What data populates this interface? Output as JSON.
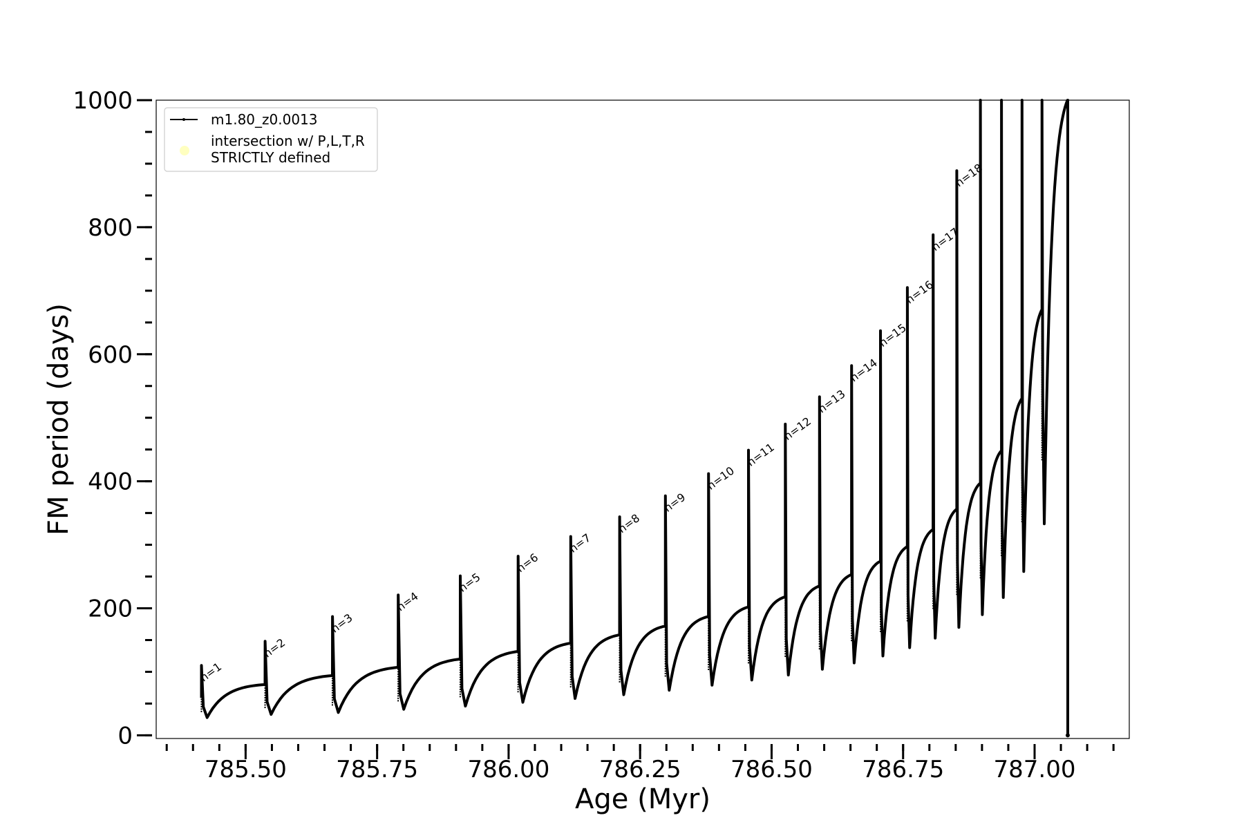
{
  "chart_data": {
    "type": "line",
    "xlabel": "Age (Myr)",
    "ylabel": "FM period (days)",
    "xlim": [
      785.33,
      787.18
    ],
    "ylim": [
      -5,
      1000
    ],
    "x_ticks": [
      785.5,
      785.75,
      786.0,
      786.25,
      786.5,
      786.75,
      787.0
    ],
    "x_tick_labels": [
      "785.50",
      "785.75",
      "786.00",
      "786.25",
      "786.50",
      "786.75",
      "787.00"
    ],
    "y_ticks": [
      0,
      200,
      400,
      600,
      800,
      1000
    ],
    "y_tick_labels": [
      "0",
      "200",
      "400",
      "600",
      "800",
      "1000"
    ],
    "x_minor_step": 0.05,
    "y_minor_step": 50,
    "grid": false,
    "legend": {
      "placement": "top-left",
      "entries": [
        {
          "label": "m1.80_z0.0013",
          "style": "line-with-dots",
          "color": "#000000"
        },
        {
          "label_lines": [
            "intersection w/ P,L,T,R",
            "STRICTLY defined"
          ],
          "style": "marker",
          "color": "#ffffc0"
        }
      ]
    },
    "series": [
      {
        "name": "m1.80_z0.0013",
        "color": "#000000",
        "pulses": [
          {
            "n": "n=1",
            "age": 785.416,
            "peak": 110,
            "min": 28,
            "plateau": 80
          },
          {
            "n": "n=2",
            "age": 785.537,
            "peak": 148,
            "min": 33,
            "plateau": 94
          },
          {
            "n": "n=3",
            "age": 785.665,
            "peak": 187,
            "min": 36,
            "plateau": 107
          },
          {
            "n": "n=4",
            "age": 785.79,
            "peak": 221,
            "min": 41,
            "plateau": 120
          },
          {
            "n": "n=5",
            "age": 785.908,
            "peak": 251,
            "min": 46,
            "plateau": 132
          },
          {
            "n": "n=6",
            "age": 786.018,
            "peak": 282,
            "min": 52,
            "plateau": 145
          },
          {
            "n": "n=7",
            "age": 786.118,
            "peak": 313,
            "min": 58,
            "plateau": 158
          },
          {
            "n": "n=8",
            "age": 786.211,
            "peak": 344,
            "min": 64,
            "plateau": 172
          },
          {
            "n": "n=9",
            "age": 786.298,
            "peak": 377,
            "min": 71,
            "plateau": 187
          },
          {
            "n": "n=10",
            "age": 786.38,
            "peak": 412,
            "min": 79,
            "plateau": 202
          },
          {
            "n": "n=11",
            "age": 786.456,
            "peak": 449,
            "min": 87,
            "plateau": 218
          },
          {
            "n": "n=12",
            "age": 786.526,
            "peak": 490,
            "min": 95,
            "plateau": 235
          },
          {
            "n": "n=13",
            "age": 786.591,
            "peak": 533,
            "min": 104,
            "plateau": 253
          },
          {
            "n": "n=14",
            "age": 786.652,
            "peak": 582,
            "min": 114,
            "plateau": 274
          },
          {
            "n": "n=15",
            "age": 786.707,
            "peak": 637,
            "min": 125,
            "plateau": 297
          },
          {
            "n": "n=16",
            "age": 786.758,
            "peak": 705,
            "min": 138,
            "plateau": 324
          },
          {
            "n": "n=17",
            "age": 786.807,
            "peak": 788,
            "min": 153,
            "plateau": 356
          },
          {
            "n": "n=18",
            "age": 786.852,
            "peak": 889,
            "min": 170,
            "plateau": 397
          },
          {
            "n": "",
            "age": 786.897,
            "peak": 1000,
            "min": 190,
            "plateau": 448
          },
          {
            "n": "",
            "age": 786.937,
            "peak": 1000,
            "min": 217,
            "plateau": 530
          },
          {
            "n": "",
            "age": 786.976,
            "peak": 1000,
            "min": 258,
            "plateau": 670
          },
          {
            "n": "",
            "age": 787.014,
            "peak": 1000,
            "min": 333,
            "plateau": 1000
          }
        ],
        "end_age": 787.063,
        "end_value": 0
      }
    ]
  }
}
